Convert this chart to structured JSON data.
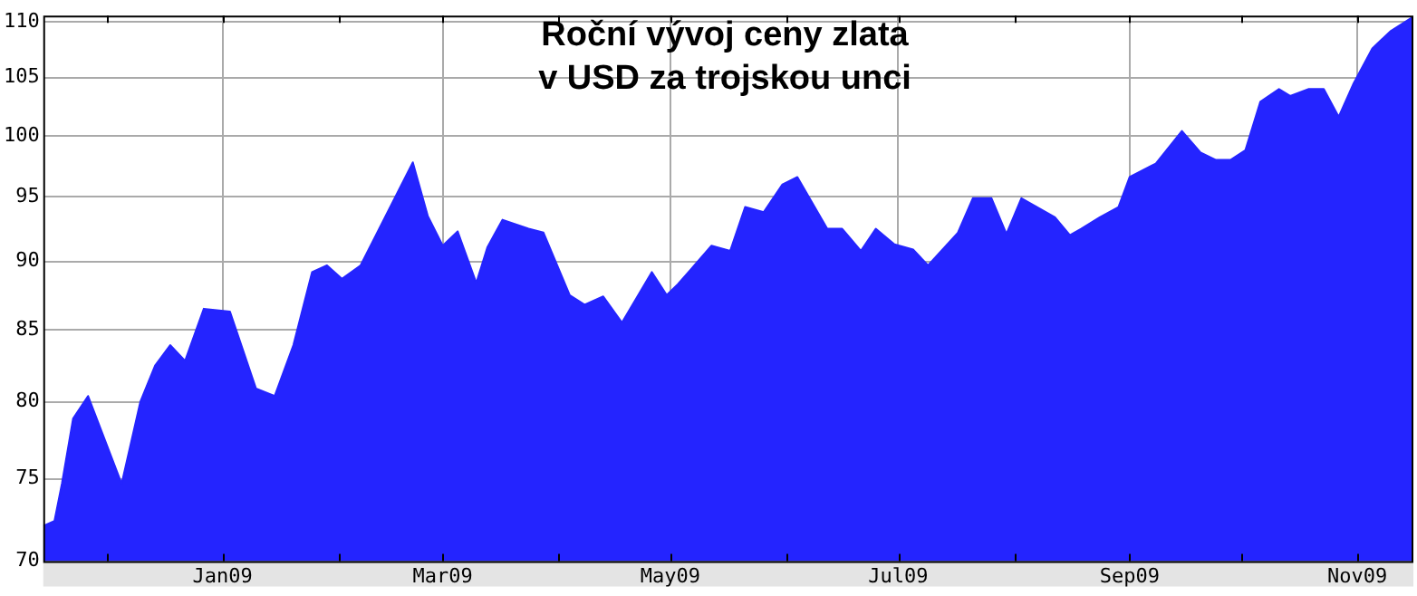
{
  "chart_data": {
    "type": "area",
    "title": "Roční vývoj ceny zlata\nv USD za trojskou unci",
    "x": [
      "2008-11-14",
      "2008-11-17",
      "2008-11-19",
      "2008-11-22",
      "2008-11-26",
      "2008-12-05",
      "2008-12-10",
      "2008-12-14",
      "2008-12-18",
      "2008-12-22",
      "2008-12-27",
      "2009-01-03",
      "2009-01-10",
      "2009-01-15",
      "2009-01-20",
      "2009-01-25",
      "2009-01-29",
      "2009-02-02",
      "2009-02-07",
      "2009-02-21",
      "2009-02-25",
      "2009-03-01",
      "2009-03-05",
      "2009-03-10",
      "2009-03-13",
      "2009-03-17",
      "2009-03-24",
      "2009-03-28",
      "2009-04-04",
      "2009-04-08",
      "2009-04-13",
      "2009-04-18",
      "2009-04-26",
      "2009-04-30",
      "2009-05-03",
      "2009-05-12",
      "2009-05-17",
      "2009-05-21",
      "2009-05-26",
      "2009-05-31",
      "2009-06-04",
      "2009-06-12",
      "2009-06-16",
      "2009-06-21",
      "2009-06-25",
      "2009-06-30",
      "2009-07-05",
      "2009-07-09",
      "2009-07-17",
      "2009-07-21",
      "2009-07-26",
      "2009-07-30",
      "2009-08-03",
      "2009-08-12",
      "2009-08-16",
      "2009-08-19",
      "2009-08-24",
      "2009-08-29",
      "2009-09-01",
      "2009-09-08",
      "2009-09-15",
      "2009-09-20",
      "2009-09-24",
      "2009-09-28",
      "2009-10-02",
      "2009-10-06",
      "2009-10-11",
      "2009-10-14",
      "2009-10-19",
      "2009-10-23",
      "2009-10-27",
      "2009-10-31",
      "2009-11-05",
      "2009-11-10",
      "2009-11-16"
    ],
    "series": [
      {
        "color": "#2424ff",
        "values": [
          72.1,
          72.4,
          74.7,
          78.9,
          80.4,
          74.7,
          80.0,
          82.5,
          83.9,
          82.8,
          86.5,
          86.3,
          80.9,
          80.4,
          83.9,
          89.2,
          89.7,
          88.7,
          89.7,
          97.8,
          93.5,
          91.2,
          92.3,
          88.4,
          91.1,
          93.2,
          92.5,
          92.2,
          87.5,
          86.8,
          87.4,
          85.5,
          89.2,
          87.5,
          88.3,
          91.2,
          90.8,
          94.2,
          93.8,
          96.0,
          96.6,
          92.5,
          92.5,
          90.8,
          92.5,
          91.3,
          90.9,
          89.7,
          92.2,
          94.9,
          94.9,
          92.1,
          94.9,
          93.4,
          92.0,
          92.5,
          93.4,
          94.2,
          96.6,
          97.7,
          100.4,
          98.6,
          98.0,
          98.0,
          98.8,
          102.9,
          104.0,
          103.4,
          104.0,
          104.0,
          101.6,
          104.5,
          107.6,
          109.2,
          110.5
        ]
      }
    ],
    "xlim": [
      "2008-11-14",
      "2009-11-16"
    ],
    "xticks": [
      {
        "value": "2008-12-01",
        "label": null
      },
      {
        "value": "2009-01-01",
        "label": "Jan09"
      },
      {
        "value": "2009-02-01",
        "label": null
      },
      {
        "value": "2009-03-01",
        "label": "Mar09"
      },
      {
        "value": "2009-04-01",
        "label": null
      },
      {
        "value": "2009-05-01",
        "label": "May09"
      },
      {
        "value": "2009-06-01",
        "label": null
      },
      {
        "value": "2009-07-01",
        "label": "Jul09"
      },
      {
        "value": "2009-08-01",
        "label": null
      },
      {
        "value": "2009-09-01",
        "label": "Sep09"
      },
      {
        "value": "2009-10-01",
        "label": null
      },
      {
        "value": "2009-11-01",
        "label": "Nov09"
      }
    ],
    "ylim": [
      70,
      110.6
    ],
    "yticks": [
      70,
      75,
      80,
      85,
      90,
      95,
      100,
      105,
      110
    ],
    "log": true,
    "grid": true
  }
}
